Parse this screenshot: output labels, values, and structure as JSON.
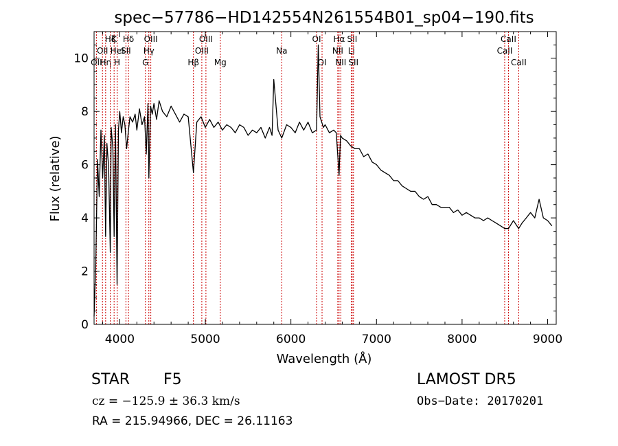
{
  "chart_data": {
    "type": "line",
    "title": "spec−57786−HD142554N261554B01_sp04−190.fits",
    "xlabel": "Wavelength (Å)",
    "ylabel": "Flux (relative)",
    "xlim": [
      3700,
      9100
    ],
    "ylim": [
      0,
      11
    ],
    "xticks": [
      4000,
      5000,
      6000,
      7000,
      8000,
      9000
    ],
    "xtick_labels": [
      "4000",
      "5000",
      "6000",
      "7000",
      "8000",
      "9000"
    ],
    "yticks": [
      0,
      2,
      4,
      6,
      8,
      10
    ],
    "ytick_labels": [
      "0",
      "2",
      "4",
      "6",
      "8",
      "10"
    ],
    "grid": false,
    "line_color": "#000000",
    "marker_color": "#cc0000",
    "series": [
      {
        "x": [
          3700,
          3720,
          3740,
          3760,
          3780,
          3800,
          3820,
          3835,
          3850,
          3870,
          3889,
          3900,
          3920,
          3934,
          3950,
          3969,
          3985,
          4000,
          4020,
          4040,
          4060,
          4080,
          4102,
          4120,
          4150,
          4180,
          4200,
          4230,
          4260,
          4290,
          4310,
          4330,
          4340,
          4360,
          4380,
          4400,
          4430,
          4460,
          4500,
          4550,
          4600,
          4650,
          4700,
          4750,
          4800,
          4861,
          4900,
          4950,
          5000,
          5050,
          5100,
          5150,
          5200,
          5250,
          5300,
          5350,
          5400,
          5450,
          5500,
          5550,
          5600,
          5650,
          5700,
          5750,
          5780,
          5800,
          5850,
          5893,
          5950,
          6000,
          6050,
          6100,
          6150,
          6200,
          6250,
          6300,
          6320,
          6340,
          6380,
          6400,
          6450,
          6500,
          6530,
          6563,
          6580,
          6600,
          6650,
          6700,
          6750,
          6800,
          6850,
          6900,
          6950,
          7000,
          7050,
          7100,
          7150,
          7200,
          7250,
          7300,
          7350,
          7400,
          7450,
          7500,
          7550,
          7600,
          7650,
          7700,
          7750,
          7800,
          7850,
          7900,
          7950,
          8000,
          8050,
          8100,
          8150,
          8200,
          8250,
          8300,
          8350,
          8400,
          8450,
          8498,
          8542,
          8600,
          8662,
          8700,
          8750,
          8800,
          8850,
          8900,
          8950,
          9000,
          9050
        ],
        "y": [
          0.3,
          2.3,
          6.2,
          4.8,
          7.3,
          5.5,
          7.1,
          3.3,
          6.8,
          5.9,
          2.7,
          7.4,
          6.6,
          3.3,
          7.5,
          1.5,
          7.3,
          8.0,
          7.2,
          7.8,
          7.5,
          6.6,
          7.3,
          7.8,
          7.6,
          7.9,
          7.3,
          8.1,
          7.5,
          7.8,
          6.4,
          8.3,
          5.5,
          8.2,
          7.9,
          8.3,
          7.7,
          8.4,
          8.0,
          7.8,
          8.2,
          7.9,
          7.6,
          7.9,
          7.8,
          5.7,
          7.6,
          7.8,
          7.4,
          7.7,
          7.4,
          7.6,
          7.3,
          7.5,
          7.4,
          7.2,
          7.5,
          7.4,
          7.1,
          7.3,
          7.2,
          7.4,
          7.0,
          7.4,
          7.1,
          9.2,
          7.3,
          7.0,
          7.5,
          7.4,
          7.2,
          7.6,
          7.3,
          7.6,
          7.2,
          7.3,
          10.5,
          7.8,
          7.4,
          7.5,
          7.2,
          7.3,
          7.2,
          5.6,
          7.1,
          7.0,
          6.9,
          6.7,
          6.6,
          6.6,
          6.3,
          6.4,
          6.1,
          6.0,
          5.8,
          5.7,
          5.6,
          5.4,
          5.4,
          5.2,
          5.1,
          5.0,
          5.0,
          4.8,
          4.7,
          4.8,
          4.5,
          4.5,
          4.4,
          4.4,
          4.4,
          4.2,
          4.3,
          4.1,
          4.2,
          4.1,
          4.0,
          4.0,
          3.9,
          4.0,
          3.9,
          3.8,
          3.7,
          3.6,
          3.6,
          3.9,
          3.6,
          3.8,
          4.0,
          4.2,
          4.0,
          4.7,
          4.0,
          3.9,
          3.7
        ]
      }
    ],
    "line_markers": [
      {
        "x": 3727,
        "label": "OII",
        "row": 3
      },
      {
        "x": 3798,
        "label": "OII",
        "row": 2
      },
      {
        "x": 3835,
        "label": "Hη",
        "row": 3
      },
      {
        "x": 3889,
        "label": "Hζ",
        "row": 1
      },
      {
        "x": 3934,
        "label": "K",
        "row": 1
      },
      {
        "x": 3969,
        "label": "H",
        "row": 3
      },
      {
        "x": 3970,
        "label": "HeI",
        "row": 2
      },
      {
        "x": 4072,
        "label": "SII",
        "row": 2
      },
      {
        "x": 4102,
        "label": "Hδ",
        "row": 1
      },
      {
        "x": 4300,
        "label": "G",
        "row": 3
      },
      {
        "x": 4340,
        "label": "Hγ",
        "row": 2
      },
      {
        "x": 4363,
        "label": "OIII",
        "row": 1
      },
      {
        "x": 4861,
        "label": "Hβ",
        "row": 3
      },
      {
        "x": 4959,
        "label": "OIII",
        "row": 2
      },
      {
        "x": 5007,
        "label": "OIII",
        "row": 1
      },
      {
        "x": 5175,
        "label": "Mg",
        "row": 3
      },
      {
        "x": 5893,
        "label": "Na",
        "row": 2
      },
      {
        "x": 6300,
        "label": "OI",
        "row": 1
      },
      {
        "x": 6364,
        "label": "OI",
        "row": 3
      },
      {
        "x": 6548,
        "label": "NII",
        "row": 2
      },
      {
        "x": 6563,
        "label": "Hα",
        "row": 1
      },
      {
        "x": 6583,
        "label": "NII",
        "row": 3
      },
      {
        "x": 6707,
        "label": "Li",
        "row": 2
      },
      {
        "x": 6716,
        "label": "SII",
        "row": 1
      },
      {
        "x": 6731,
        "label": "SII",
        "row": 3
      },
      {
        "x": 8498,
        "label": "CaII",
        "row": 2
      },
      {
        "x": 8542,
        "label": "CaII",
        "row": 1
      },
      {
        "x": 8662,
        "label": "CaII",
        "row": 3
      }
    ]
  },
  "info": {
    "object_class": "STAR",
    "subclass": "F5",
    "survey": "LAMOST DR5",
    "cz": "cz = −125.9 ± 36.3 km/s",
    "obs_date": "Obs−Date: 20170201",
    "coords": "RA = 215.94966, DEC =  26.11163"
  }
}
